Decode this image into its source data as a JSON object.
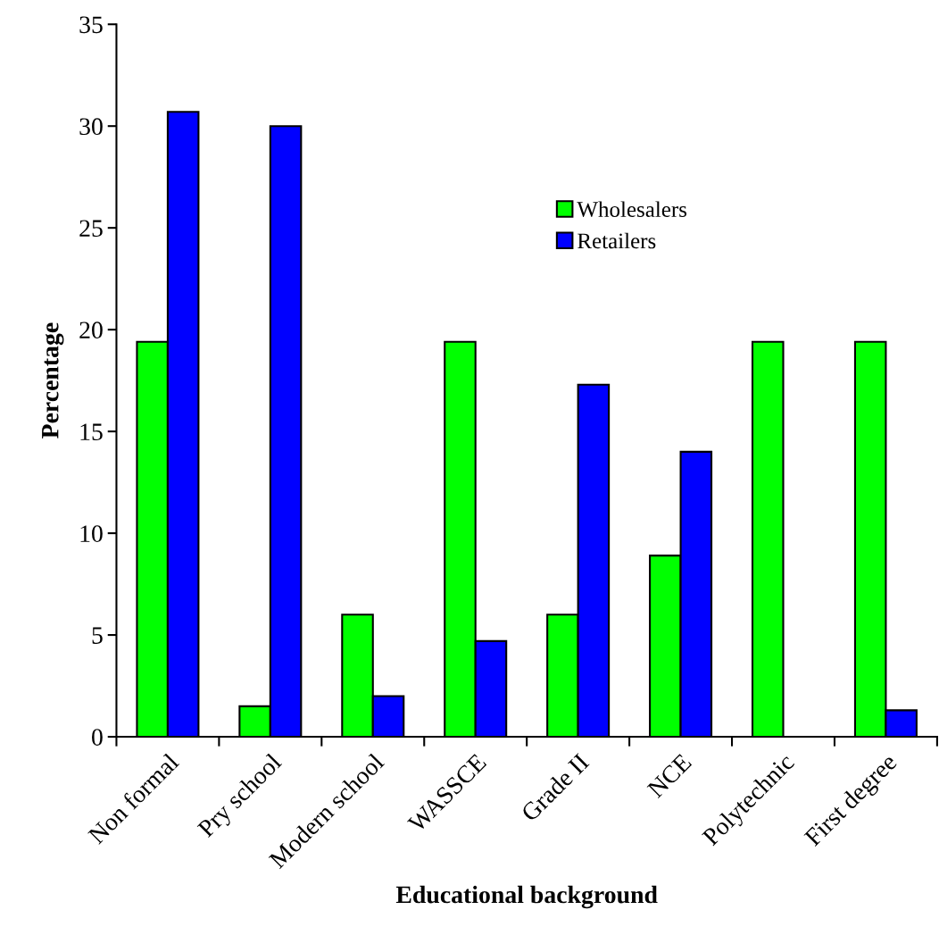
{
  "chart_data": {
    "type": "bar",
    "xlabel": "Educational background",
    "ylabel": "Percentage",
    "categories": [
      "Non formal",
      "Pry school",
      "Modern school",
      "WASSCE",
      "Grade II",
      "NCE",
      "Polytechnic",
      "First degree"
    ],
    "series": [
      {
        "name": "Wholesalers",
        "color": "#00ff00",
        "values": [
          19.4,
          1.5,
          6.0,
          19.4,
          6.0,
          8.9,
          19.4,
          19.4
        ]
      },
      {
        "name": "Retailers",
        "color": "#0000ff",
        "values": [
          30.7,
          30.0,
          2.0,
          4.7,
          17.3,
          14.0,
          null,
          1.3
        ]
      }
    ],
    "ylim": [
      0,
      35
    ],
    "yticks": [
      0,
      5,
      10,
      15,
      20,
      25,
      30,
      35
    ],
    "grid": false,
    "legend": "top right"
  }
}
